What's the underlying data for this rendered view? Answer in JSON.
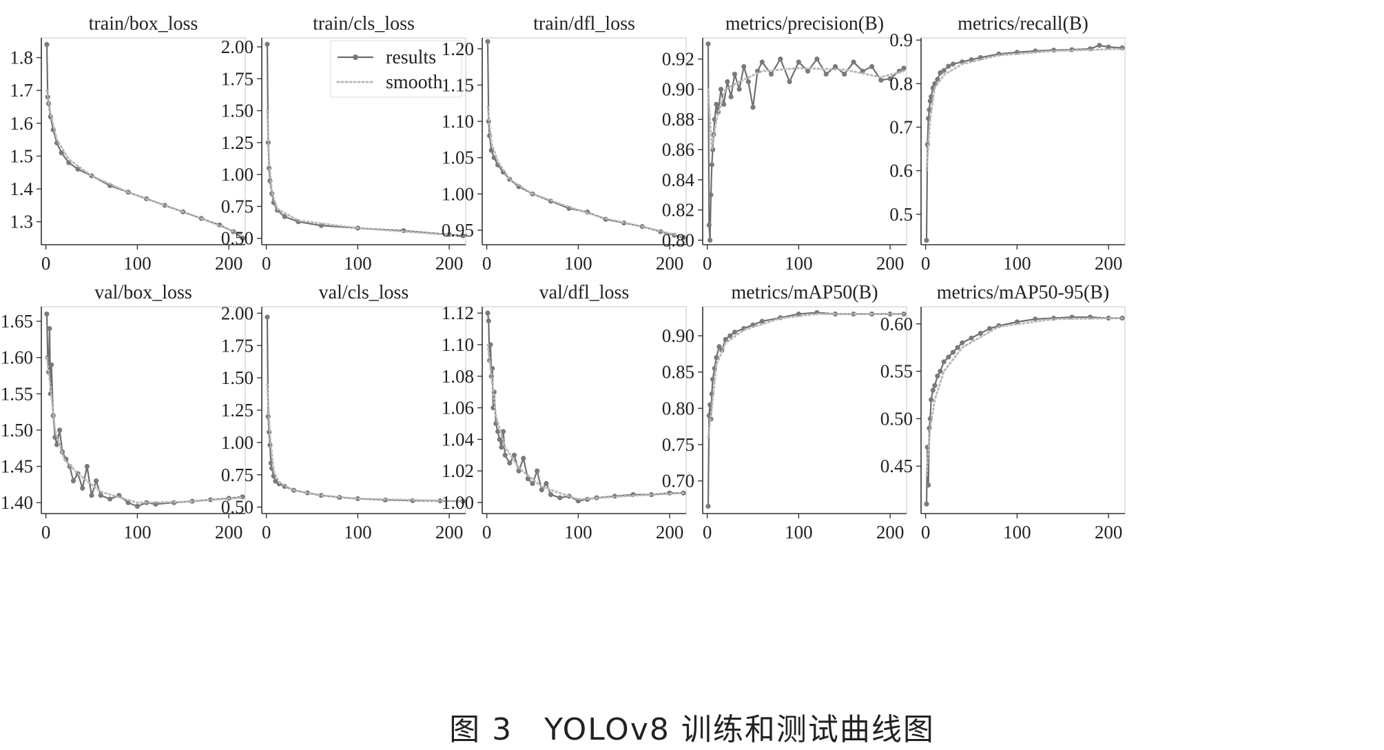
{
  "caption": "图 3　YOLOv8 训练和测试曲线图",
  "style": {
    "line_color": "#6e6e6e",
    "marker_color": "#7a7a7a",
    "smooth_color": "#b8b8b8",
    "axis_color": "#333333",
    "text_color": "#222222"
  },
  "legend": {
    "entries": [
      {
        "label": "results",
        "style": "line-with-markers"
      },
      {
        "label": "smooth",
        "style": "dotted"
      }
    ]
  },
  "chart_data": [
    {
      "type": "line",
      "title": "train/box_loss",
      "xlim": [
        -5,
        218
      ],
      "ylim": [
        1.23,
        1.86
      ],
      "xticks": [
        0,
        100,
        200
      ],
      "yticks": [
        1.3,
        1.4,
        1.5,
        1.6,
        1.7,
        1.8
      ],
      "series": [
        {
          "name": "results",
          "x": [
            1,
            2,
            3,
            5,
            8,
            12,
            17,
            25,
            35,
            50,
            70,
            90,
            110,
            130,
            150,
            170,
            190,
            205,
            215
          ],
          "values": [
            1.84,
            1.68,
            1.66,
            1.62,
            1.58,
            1.54,
            1.51,
            1.48,
            1.46,
            1.44,
            1.41,
            1.39,
            1.37,
            1.35,
            1.33,
            1.31,
            1.29,
            1.27,
            1.25
          ]
        },
        {
          "name": "smooth",
          "x": [
            1,
            5,
            12,
            25,
            50,
            90,
            130,
            170,
            215
          ],
          "values": [
            1.7,
            1.63,
            1.55,
            1.49,
            1.44,
            1.39,
            1.35,
            1.31,
            1.26
          ]
        }
      ]
    },
    {
      "type": "line",
      "title": "train/cls_loss",
      "xlim": [
        -5,
        218
      ],
      "ylim": [
        0.45,
        2.07
      ],
      "xticks": [
        0,
        100,
        200
      ],
      "yticks": [
        0.5,
        0.75,
        1.0,
        1.25,
        1.5,
        1.75,
        2.0
      ],
      "yticklabels": [
        "0.50",
        "0.75",
        "1.00",
        "1.25",
        "1.50",
        "1.75",
        "2.00"
      ],
      "legend_location": "top-right",
      "series": [
        {
          "name": "results",
          "x": [
            1,
            2,
            3,
            4,
            6,
            8,
            12,
            20,
            35,
            60,
            100,
            150,
            200,
            215
          ],
          "values": [
            2.02,
            1.25,
            1.05,
            0.95,
            0.85,
            0.78,
            0.72,
            0.67,
            0.63,
            0.6,
            0.58,
            0.56,
            0.53,
            0.52
          ]
        },
        {
          "name": "smooth",
          "x": [
            1,
            3,
            6,
            12,
            35,
            100,
            215
          ],
          "values": [
            1.5,
            1.1,
            0.86,
            0.73,
            0.64,
            0.58,
            0.52
          ]
        }
      ]
    },
    {
      "type": "line",
      "title": "train/dfl_loss",
      "xlim": [
        -5,
        218
      ],
      "ylim": [
        0.93,
        1.215
      ],
      "xticks": [
        0,
        100,
        200
      ],
      "yticks": [
        0.95,
        1.0,
        1.05,
        1.1,
        1.15,
        1.2
      ],
      "yticklabels": [
        "0.95",
        "1.00",
        "1.05",
        "1.10",
        "1.15",
        "1.20"
      ],
      "series": [
        {
          "name": "results",
          "x": [
            1,
            2,
            3,
            5,
            8,
            12,
            18,
            25,
            35,
            50,
            70,
            90,
            110,
            130,
            150,
            170,
            190,
            205,
            215
          ],
          "values": [
            1.21,
            1.1,
            1.08,
            1.06,
            1.05,
            1.04,
            1.03,
            1.02,
            1.01,
            1.0,
            0.99,
            0.98,
            0.975,
            0.965,
            0.96,
            0.955,
            0.948,
            0.943,
            0.94
          ]
        },
        {
          "name": "smooth",
          "x": [
            1,
            5,
            12,
            25,
            50,
            90,
            130,
            170,
            215
          ],
          "values": [
            1.12,
            1.07,
            1.045,
            1.02,
            1.0,
            0.982,
            0.966,
            0.955,
            0.941
          ]
        }
      ]
    },
    {
      "type": "line",
      "title": "metrics/precision(B)",
      "xlim": [
        -5,
        218
      ],
      "ylim": [
        0.797,
        0.934
      ],
      "xticks": [
        0,
        100,
        200
      ],
      "yticks": [
        0.8,
        0.82,
        0.84,
        0.86,
        0.88,
        0.9,
        0.92
      ],
      "yticklabels": [
        "0.80",
        "0.82",
        "0.84",
        "0.86",
        "0.88",
        "0.90",
        "0.92"
      ],
      "series": [
        {
          "name": "results",
          "x": [
            1,
            2,
            3,
            4,
            5,
            6,
            7,
            8,
            10,
            12,
            15,
            18,
            22,
            26,
            30,
            35,
            40,
            45,
            50,
            55,
            60,
            70,
            80,
            90,
            100,
            110,
            120,
            130,
            140,
            150,
            160,
            170,
            180,
            190,
            200,
            210,
            215
          ],
          "values": [
            0.93,
            0.81,
            0.8,
            0.83,
            0.85,
            0.86,
            0.87,
            0.88,
            0.89,
            0.885,
            0.9,
            0.89,
            0.905,
            0.895,
            0.91,
            0.9,
            0.915,
            0.905,
            0.888,
            0.912,
            0.918,
            0.91,
            0.92,
            0.905,
            0.918,
            0.912,
            0.92,
            0.91,
            0.915,
            0.91,
            0.918,
            0.912,
            0.915,
            0.906,
            0.907,
            0.912,
            0.914
          ]
        },
        {
          "name": "smooth",
          "x": [
            1,
            5,
            10,
            20,
            35,
            60,
            100,
            150,
            190,
            215
          ],
          "values": [
            0.9,
            0.86,
            0.88,
            0.9,
            0.905,
            0.912,
            0.914,
            0.913,
            0.908,
            0.912
          ]
        }
      ]
    },
    {
      "type": "line",
      "title": "metrics/recall(B)",
      "xlim": [
        -5,
        218
      ],
      "ylim": [
        0.43,
        0.905
      ],
      "xticks": [
        0,
        100,
        200
      ],
      "yticks": [
        0.5,
        0.6,
        0.7,
        0.8,
        0.9
      ],
      "series": [
        {
          "name": "results",
          "x": [
            1,
            2,
            3,
            4,
            5,
            6,
            8,
            10,
            13,
            16,
            20,
            25,
            30,
            40,
            50,
            60,
            80,
            100,
            120,
            140,
            160,
            180,
            190,
            200,
            215
          ],
          "values": [
            0.44,
            0.66,
            0.72,
            0.74,
            0.76,
            0.77,
            0.79,
            0.8,
            0.81,
            0.825,
            0.83,
            0.84,
            0.845,
            0.85,
            0.855,
            0.86,
            0.868,
            0.872,
            0.875,
            0.877,
            0.878,
            0.88,
            0.888,
            0.884,
            0.882
          ]
        },
        {
          "name": "smooth",
          "x": [
            1,
            5,
            10,
            20,
            40,
            80,
            140,
            215
          ],
          "values": [
            0.6,
            0.72,
            0.79,
            0.82,
            0.845,
            0.865,
            0.875,
            0.88
          ]
        }
      ]
    },
    {
      "type": "line",
      "title": "val/box_loss",
      "xlim": [
        -5,
        218
      ],
      "ylim": [
        1.385,
        1.67
      ],
      "xticks": [
        0,
        100,
        200
      ],
      "yticks": [
        1.4,
        1.45,
        1.5,
        1.55,
        1.6,
        1.65
      ],
      "yticklabels": [
        "1.40",
        "1.45",
        "1.50",
        "1.55",
        "1.60",
        "1.65"
      ],
      "series": [
        {
          "name": "results",
          "x": [
            1,
            2,
            3,
            4,
            5,
            6,
            8,
            10,
            12,
            15,
            18,
            22,
            26,
            30,
            35,
            40,
            45,
            50,
            55,
            60,
            70,
            80,
            90,
            100,
            110,
            120,
            140,
            160,
            180,
            200,
            215
          ],
          "values": [
            1.66,
            1.6,
            1.58,
            1.64,
            1.55,
            1.59,
            1.52,
            1.49,
            1.48,
            1.5,
            1.47,
            1.46,
            1.45,
            1.43,
            1.44,
            1.42,
            1.45,
            1.41,
            1.43,
            1.41,
            1.405,
            1.41,
            1.4,
            1.395,
            1.4,
            1.398,
            1.4,
            1.402,
            1.404,
            1.406,
            1.408
          ]
        },
        {
          "name": "smooth",
          "x": [
            1,
            5,
            10,
            20,
            35,
            60,
            100,
            150,
            215
          ],
          "values": [
            1.6,
            1.56,
            1.5,
            1.46,
            1.44,
            1.415,
            1.4,
            1.401,
            1.407
          ]
        }
      ]
    },
    {
      "type": "line",
      "title": "val/cls_loss",
      "xlim": [
        -5,
        218
      ],
      "ylim": [
        0.45,
        2.05
      ],
      "xticks": [
        0,
        100,
        200
      ],
      "yticks": [
        0.5,
        0.75,
        1.0,
        1.25,
        1.5,
        1.75,
        2.0
      ],
      "yticklabels": [
        "0.50",
        "0.75",
        "1.00",
        "1.25",
        "1.50",
        "1.75",
        "2.00"
      ],
      "series": [
        {
          "name": "results",
          "x": [
            1,
            2,
            3,
            4,
            5,
            6,
            8,
            10,
            14,
            20,
            30,
            45,
            60,
            80,
            100,
            130,
            160,
            190,
            215
          ],
          "values": [
            1.97,
            1.2,
            1.08,
            0.98,
            0.84,
            0.8,
            0.74,
            0.7,
            0.68,
            0.66,
            0.63,
            0.61,
            0.59,
            0.575,
            0.565,
            0.555,
            0.55,
            0.548,
            0.545
          ]
        },
        {
          "name": "smooth",
          "x": [
            1,
            4,
            8,
            14,
            30,
            60,
            100,
            215
          ],
          "values": [
            1.45,
            1.05,
            0.78,
            0.69,
            0.63,
            0.59,
            0.565,
            0.545
          ]
        }
      ]
    },
    {
      "type": "line",
      "title": "val/dfl_loss",
      "xlim": [
        -5,
        218
      ],
      "ylim": [
        0.993,
        1.124
      ],
      "xticks": [
        0,
        100,
        200
      ],
      "yticks": [
        1.0,
        1.02,
        1.04,
        1.06,
        1.08,
        1.1,
        1.12
      ],
      "yticklabels": [
        "1.00",
        "1.02",
        "1.04",
        "1.06",
        "1.08",
        "1.10",
        "1.12"
      ],
      "series": [
        {
          "name": "results",
          "x": [
            1,
            2,
            3,
            4,
            5,
            6,
            7,
            8,
            10,
            12,
            14,
            16,
            18,
            20,
            25,
            30,
            35,
            40,
            45,
            50,
            55,
            60,
            65,
            70,
            80,
            90,
            100,
            110,
            120,
            140,
            160,
            180,
            200,
            215
          ],
          "values": [
            1.12,
            1.115,
            1.09,
            1.1,
            1.08,
            1.085,
            1.06,
            1.07,
            1.05,
            1.045,
            1.04,
            1.035,
            1.045,
            1.03,
            1.025,
            1.03,
            1.02,
            1.028,
            1.015,
            1.012,
            1.02,
            1.008,
            1.012,
            1.005,
            1.003,
            1.004,
            1.001,
            1.002,
            1.003,
            1.004,
            1.005,
            1.005,
            1.006,
            1.006
          ]
        },
        {
          "name": "smooth",
          "x": [
            1,
            5,
            10,
            20,
            35,
            60,
            100,
            150,
            215
          ],
          "values": [
            1.1,
            1.08,
            1.055,
            1.035,
            1.022,
            1.01,
            1.002,
            1.004,
            1.006
          ]
        }
      ]
    },
    {
      "type": "line",
      "title": "metrics/mAP50(B)",
      "xlim": [
        -5,
        218
      ],
      "ylim": [
        0.655,
        0.94
      ],
      "xticks": [
        0,
        100,
        200
      ],
      "yticks": [
        0.7,
        0.75,
        0.8,
        0.85,
        0.9
      ],
      "yticklabels": [
        "0.70",
        "0.75",
        "0.80",
        "0.85",
        "0.90"
      ],
      "series": [
        {
          "name": "results",
          "x": [
            1,
            2,
            3,
            4,
            5,
            6,
            8,
            10,
            13,
            16,
            20,
            25,
            30,
            40,
            50,
            60,
            80,
            100,
            120,
            140,
            160,
            180,
            200,
            215
          ],
          "values": [
            0.665,
            0.79,
            0.805,
            0.785,
            0.82,
            0.84,
            0.855,
            0.87,
            0.885,
            0.88,
            0.895,
            0.9,
            0.905,
            0.91,
            0.915,
            0.92,
            0.925,
            0.93,
            0.932,
            0.93,
            0.93,
            0.93,
            0.93,
            0.93
          ]
        },
        {
          "name": "smooth",
          "x": [
            1,
            5,
            10,
            20,
            40,
            80,
            120,
            215
          ],
          "values": [
            0.76,
            0.8,
            0.86,
            0.89,
            0.908,
            0.924,
            0.93,
            0.93
          ]
        }
      ]
    },
    {
      "type": "line",
      "title": "metrics/mAP50-95(B)",
      "xlim": [
        -5,
        218
      ],
      "ylim": [
        0.4,
        0.618
      ],
      "xticks": [
        0,
        100,
        200
      ],
      "yticks": [
        0.45,
        0.5,
        0.55,
        0.6
      ],
      "yticklabels": [
        "0.45",
        "0.50",
        "0.55",
        "0.60"
      ],
      "series": [
        {
          "name": "results",
          "x": [
            1,
            2,
            3,
            4,
            5,
            6,
            8,
            10,
            13,
            16,
            20,
            25,
            30,
            35,
            40,
            50,
            60,
            70,
            80,
            100,
            120,
            140,
            160,
            180,
            200,
            215
          ],
          "values": [
            0.41,
            0.47,
            0.43,
            0.49,
            0.5,
            0.52,
            0.53,
            0.535,
            0.545,
            0.55,
            0.56,
            0.565,
            0.57,
            0.575,
            0.58,
            0.585,
            0.59,
            0.595,
            0.598,
            0.602,
            0.605,
            0.606,
            0.607,
            0.607,
            0.606,
            0.606
          ]
        },
        {
          "name": "smooth",
          "x": [
            1,
            5,
            10,
            20,
            40,
            80,
            140,
            215
          ],
          "values": [
            0.44,
            0.49,
            0.52,
            0.55,
            0.575,
            0.597,
            0.605,
            0.606
          ]
        }
      ]
    }
  ]
}
